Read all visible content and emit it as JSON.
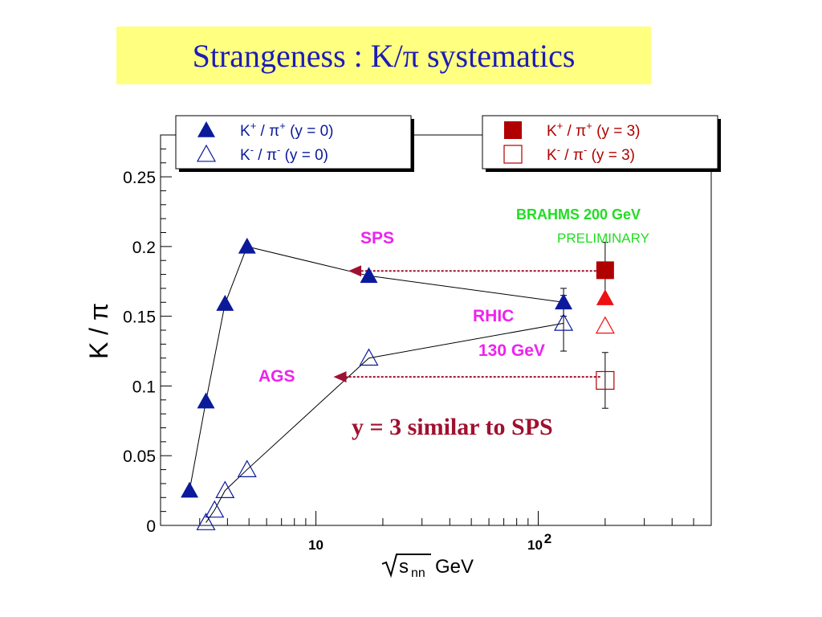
{
  "title": "Strangeness : K/π systematics",
  "colors": {
    "title_bg": "#ffff80",
    "title_text": "#1c1cb8",
    "ags_sps_rhic": "#0a1a9a",
    "brahms_dark_red": "#b00000",
    "brahms_red": "#ee1111",
    "arrow": "#a01030",
    "label_magenta": "#ee22ee",
    "label_green": "#22dd22",
    "statement": "#a01030"
  },
  "chart_data": {
    "type": "scatter",
    "xscale": "log",
    "xlim": [
      2,
      600
    ],
    "ylim": [
      0,
      0.28
    ],
    "xlabel": {
      "main": "s",
      "sub": "nn",
      "unit": "GeV"
    },
    "ylabel": "K / π",
    "yticks": [
      "0",
      "0.05",
      "0.1",
      "0.15",
      "0.2",
      "0.25"
    ],
    "ytick_values": [
      0,
      0.05,
      0.1,
      0.15,
      0.2,
      0.25
    ],
    "xticks": [
      {
        "value": 10,
        "base": "10",
        "exp": ""
      },
      {
        "value": 100,
        "base": "10",
        "exp": "2"
      }
    ],
    "legend_left": [
      {
        "kaon": "K",
        "kcharge": "+",
        "pion": "π",
        "pcharge": "+",
        "cond": "(y = 0)",
        "marker": "triangle-filled"
      },
      {
        "kaon": "K",
        "kcharge": "-",
        "pion": "π",
        "pcharge": "-",
        "cond": "(y = 0)",
        "marker": "triangle-open"
      }
    ],
    "legend_right": [
      {
        "kaon": "K",
        "kcharge": "+",
        "pion": "π",
        "pcharge": "+",
        "cond": "(y = 3)",
        "marker": "square-filled"
      },
      {
        "kaon": "K",
        "kcharge": "-",
        "pion": "π",
        "pcharge": "-",
        "cond": "(y = 3)",
        "marker": "square-open"
      }
    ],
    "series": [
      {
        "label": "K+ / π+ (y = 0)",
        "marker": "triangle-filled",
        "connected": true,
        "points": [
          {
            "x": 2.7,
            "y": 0.025
          },
          {
            "x": 3.2,
            "y": 0.089
          },
          {
            "x": 3.9,
            "y": 0.159
          },
          {
            "x": 4.9,
            "y": 0.2
          },
          {
            "x": 17.3,
            "y": 0.179
          },
          {
            "x": 130,
            "y": 0.16,
            "err": 0.01
          }
        ]
      },
      {
        "label": "K- / π- (y = 0)",
        "marker": "triangle-open",
        "connected": true,
        "points": [
          {
            "x": 3.2,
            "y": 0.002
          },
          {
            "x": 3.5,
            "y": 0.011
          },
          {
            "x": 3.9,
            "y": 0.025
          },
          {
            "x": 4.9,
            "y": 0.04
          },
          {
            "x": 17.3,
            "y": 0.12
          },
          {
            "x": 130,
            "y": 0.145,
            "err": 0.02
          }
        ]
      },
      {
        "label": "K+ / π+ (y = 3)",
        "marker": "square-filled",
        "connected": false,
        "points": [
          {
            "x": 200,
            "y": 0.183,
            "err": 0.02
          }
        ]
      },
      {
        "label": "K+ / π+ (y = 0) BRAHMS",
        "marker": "triangle-filled-red",
        "connected": false,
        "points": [
          {
            "x": 200,
            "y": 0.163
          }
        ]
      },
      {
        "label": "K- / π- (y = 0) BRAHMS",
        "marker": "triangle-open-red",
        "connected": false,
        "points": [
          {
            "x": 200,
            "y": 0.143
          }
        ]
      },
      {
        "label": "K- / π- (y = 3)",
        "marker": "square-open",
        "connected": false,
        "points": [
          {
            "x": 200,
            "y": 0.104,
            "err": 0.02
          }
        ]
      }
    ],
    "arrows": [
      {
        "from_x": 190,
        "to_x": 14,
        "y": 0.1825
      },
      {
        "from_x": 190,
        "to_x": 12,
        "y": 0.1065
      }
    ],
    "annotations": {
      "sps": "SPS",
      "ags": "AGS",
      "rhic": "RHIC",
      "rhic_energy": "130 GeV",
      "brahms": "BRAHMS 200 GeV",
      "preliminary": "PRELIMINARY",
      "statement": "y = 3 similar to SPS"
    }
  }
}
